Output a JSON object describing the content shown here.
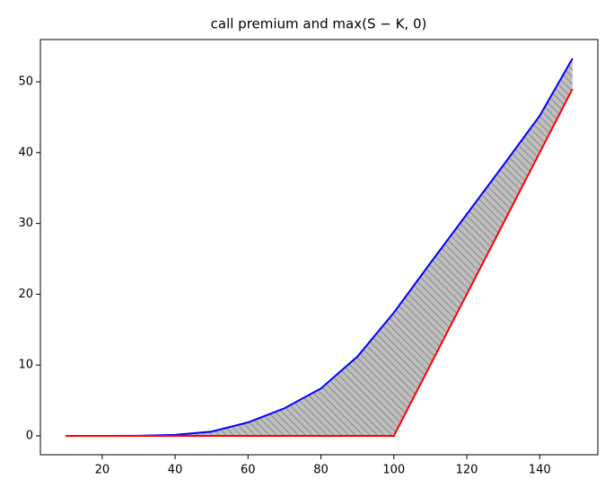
{
  "chart_data": {
    "type": "line",
    "title": "call premium and max(S − K, 0)",
    "x": [
      10,
      20,
      30,
      40,
      50,
      60,
      70,
      80,
      90,
      100,
      110,
      120,
      130,
      140,
      149
    ],
    "series": [
      {
        "name": "call premium",
        "color": "#0000ff",
        "values": [
          0,
          0,
          0.02,
          0.15,
          0.6,
          1.9,
          3.9,
          6.7,
          11.2,
          17.4,
          24.4,
          31.3,
          38.2,
          45.2,
          53.3
        ]
      },
      {
        "name": "max(S-K,0)",
        "color": "#ff0000",
        "values": [
          0,
          0,
          0,
          0,
          0,
          0,
          0,
          0,
          0,
          0,
          10,
          20,
          30,
          40,
          49
        ]
      }
    ],
    "fill_between": true,
    "xlim": [
      3.05,
      155.95
    ],
    "xticks": [
      20,
      40,
      60,
      80,
      100,
      120,
      140
    ],
    "ylim": [
      -2.665,
      55.97
    ],
    "yticks": [
      0,
      10,
      20,
      30,
      40,
      50
    ]
  }
}
